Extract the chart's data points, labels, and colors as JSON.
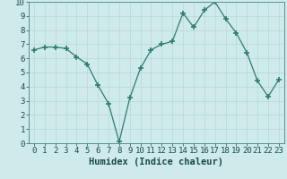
{
  "x": [
    0,
    1,
    2,
    3,
    4,
    5,
    6,
    7,
    8,
    9,
    10,
    11,
    12,
    13,
    14,
    15,
    16,
    17,
    18,
    19,
    20,
    21,
    22,
    23
  ],
  "y": [
    6.6,
    6.8,
    6.8,
    6.7,
    6.1,
    5.6,
    4.1,
    2.8,
    0.1,
    3.2,
    5.3,
    6.6,
    7.0,
    7.2,
    9.2,
    8.2,
    9.4,
    10.0,
    8.8,
    7.8,
    6.4,
    4.4,
    3.3,
    4.5
  ],
  "title": "",
  "xlabel": "Humidex (Indice chaleur)",
  "ylabel": "",
  "xlim": [
    -0.5,
    23.5
  ],
  "ylim": [
    0,
    10
  ],
  "line_color": "#2d7d6e",
  "marker_color": "#2d7d6e",
  "bg_color": "#ceeaea",
  "grid_color": "#b8d8d4",
  "axis_label_color": "#1a4a4a",
  "xlabel_fontsize": 7.5,
  "tick_fontsize": 6.5,
  "yticks": [
    0,
    1,
    2,
    3,
    4,
    5,
    6,
    7,
    8,
    9,
    10
  ],
  "xticks": [
    0,
    1,
    2,
    3,
    4,
    5,
    6,
    7,
    8,
    9,
    10,
    11,
    12,
    13,
    14,
    15,
    16,
    17,
    18,
    19,
    20,
    21,
    22,
    23
  ]
}
